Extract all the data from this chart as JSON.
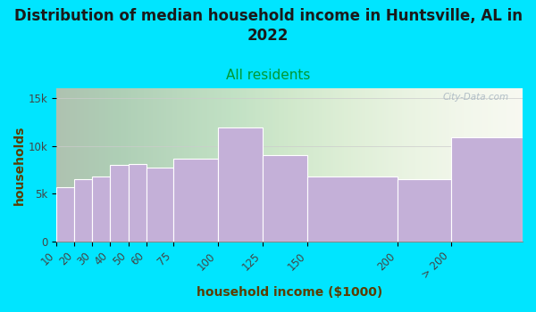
{
  "title": "Distribution of median household income in Huntsville, AL in\n2022",
  "subtitle": "All residents",
  "xlabel": "household income ($1000)",
  "ylabel": "households",
  "bar_edges": [
    10,
    20,
    30,
    40,
    50,
    60,
    75,
    100,
    125,
    150,
    200,
    230,
    270
  ],
  "bar_labels": [
    "10",
    "20",
    "30",
    "40",
    "50",
    "60",
    "75",
    "100",
    "125",
    "150",
    "200",
    "> 200"
  ],
  "bar_values": [
    5700,
    6500,
    6800,
    8000,
    8100,
    7700,
    8700,
    11900,
    9000,
    6800,
    6500,
    10900
  ],
  "bar_color": "#c4b0d8",
  "bar_edgecolor": "#ffffff",
  "ylim": [
    0,
    16000
  ],
  "yticks": [
    0,
    5000,
    10000,
    15000
  ],
  "ytick_labels": [
    "0",
    "5k",
    "10k",
    "15k"
  ],
  "background_outer": "#00e5ff",
  "background_plot_left": "#d8f0d0",
  "background_plot_right": "#f8f8f0",
  "title_color": "#1a1a1a",
  "subtitle_color": "#009933",
  "axis_label_color": "#5c3c00",
  "title_fontsize": 12,
  "subtitle_fontsize": 11,
  "axis_label_fontsize": 10,
  "tick_label_fontsize": 8.5,
  "watermark_text": "City-Data.com",
  "watermark_color": "#aab8c2"
}
